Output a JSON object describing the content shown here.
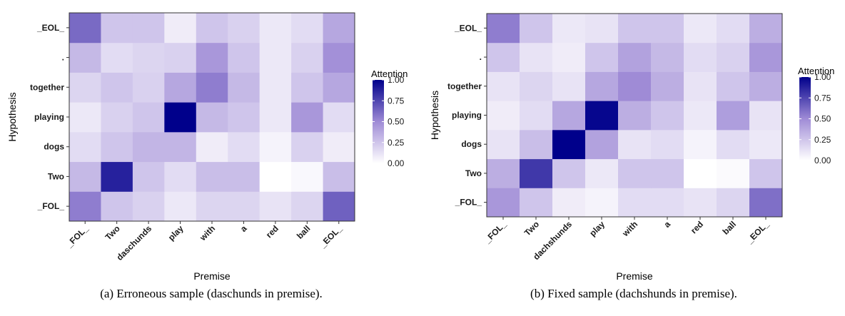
{
  "captions": [
    "(a)  Erroneous sample (daschunds in premise).",
    "(b) Fixed sample (dachshunds in premise)."
  ],
  "chart_data": [
    {
      "type": "heatmap",
      "xlabel": "Premise",
      "ylabel": "Hypothesis",
      "x_categories": [
        "_FOL_",
        "Two",
        "daschunds",
        "play",
        "with",
        "a",
        "red",
        "ball",
        "_EOL_"
      ],
      "y_categories": [
        "_FOL_",
        "Two",
        "dogs",
        "playing",
        "together",
        ".",
        "_EOL_"
      ],
      "legend_title": "Attention",
      "legend_ticks": [
        "0.00",
        "0.25",
        "0.50",
        "0.75",
        "1.00"
      ],
      "color_range": [
        0,
        1
      ],
      "color_low": "#ffffff",
      "color_mid": "#9f8bd6",
      "color_high": "#00008b",
      "values": [
        [
          0.55,
          0.25,
          0.2,
          0.1,
          0.18,
          0.18,
          0.12,
          0.18,
          0.65
        ],
        [
          0.3,
          0.88,
          0.25,
          0.15,
          0.28,
          0.28,
          0.0,
          0.03,
          0.28
        ],
        [
          0.15,
          0.25,
          0.32,
          0.32,
          0.08,
          0.15,
          0.05,
          0.2,
          0.08
        ],
        [
          0.1,
          0.2,
          0.25,
          1.0,
          0.3,
          0.25,
          0.1,
          0.45,
          0.15
        ],
        [
          0.18,
          0.25,
          0.2,
          0.38,
          0.55,
          0.3,
          0.1,
          0.25,
          0.38
        ],
        [
          0.3,
          0.15,
          0.18,
          0.2,
          0.45,
          0.25,
          0.1,
          0.2,
          0.48
        ],
        [
          0.62,
          0.25,
          0.25,
          0.08,
          0.25,
          0.2,
          0.1,
          0.15,
          0.38
        ]
      ]
    },
    {
      "type": "heatmap",
      "xlabel": "Premise",
      "ylabel": "Hypothesis",
      "x_categories": [
        "_FOL_",
        "Two",
        "dachshunds",
        "play",
        "with",
        "a",
        "red",
        "ball",
        "_EOL_"
      ],
      "y_categories": [
        "_FOL_",
        "Two",
        "dogs",
        "playing",
        "together",
        ".",
        "_EOL_"
      ],
      "legend_title": "Attention",
      "legend_ticks": [
        "0.00",
        "0.25",
        "0.50",
        "0.75",
        "1.00"
      ],
      "color_range": [
        0,
        1
      ],
      "color_low": "#ffffff",
      "color_mid": "#9f8bd6",
      "color_high": "#00008b",
      "values": [
        [
          0.45,
          0.25,
          0.08,
          0.05,
          0.15,
          0.15,
          0.12,
          0.18,
          0.6
        ],
        [
          0.35,
          0.8,
          0.25,
          0.1,
          0.25,
          0.25,
          0.0,
          0.02,
          0.25
        ],
        [
          0.12,
          0.28,
          1.0,
          0.4,
          0.12,
          0.15,
          0.05,
          0.15,
          0.1
        ],
        [
          0.08,
          0.15,
          0.38,
          0.98,
          0.35,
          0.25,
          0.1,
          0.42,
          0.12
        ],
        [
          0.12,
          0.18,
          0.12,
          0.38,
          0.5,
          0.35,
          0.12,
          0.25,
          0.35
        ],
        [
          0.25,
          0.12,
          0.08,
          0.25,
          0.4,
          0.3,
          0.15,
          0.2,
          0.45
        ],
        [
          0.55,
          0.25,
          0.1,
          0.12,
          0.25,
          0.25,
          0.1,
          0.15,
          0.35
        ]
      ]
    }
  ]
}
